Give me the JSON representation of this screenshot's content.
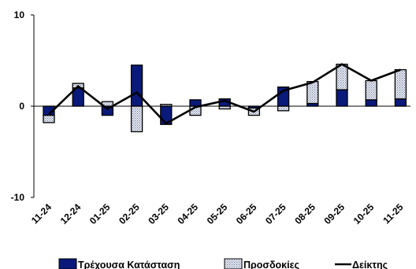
{
  "chart_data": {
    "type": "bar",
    "subtype": "stacked-bar-with-line",
    "categories": [
      "11-24",
      "12-24",
      "01-25",
      "02-25",
      "03-25",
      "04-25",
      "05-25",
      "06-25",
      "07-25",
      "08-25",
      "09-25",
      "10-25",
      "11-25"
    ],
    "series": [
      {
        "name": "Τρέχουσα Κατάσταση",
        "type": "bar",
        "color": "#0a1a7a",
        "values": [
          -1.0,
          2.0,
          -1.0,
          4.5,
          -2.0,
          0.7,
          0.8,
          -0.2,
          2.1,
          0.3,
          1.8,
          0.7,
          0.8
        ]
      },
      {
        "name": "Προσδοκίες",
        "type": "bar",
        "pattern": "dotted",
        "color": "#cfd6e6",
        "values": [
          -0.8,
          0.5,
          0.5,
          -2.8,
          0.2,
          -1.0,
          -0.3,
          -0.8,
          -0.5,
          2.4,
          2.8,
          2.1,
          3.2
        ]
      },
      {
        "name": "Δείκτης",
        "type": "line",
        "color": "#000000",
        "values": [
          -0.9,
          2.2,
          -0.3,
          1.5,
          -1.9,
          -0.1,
          0.6,
          -0.6,
          1.7,
          2.6,
          4.6,
          2.8,
          4.0
        ]
      }
    ],
    "yticks": [
      10,
      0,
      -10
    ],
    "ylim": [
      -10,
      10
    ],
    "legend_position": "bottom",
    "grid": false
  }
}
